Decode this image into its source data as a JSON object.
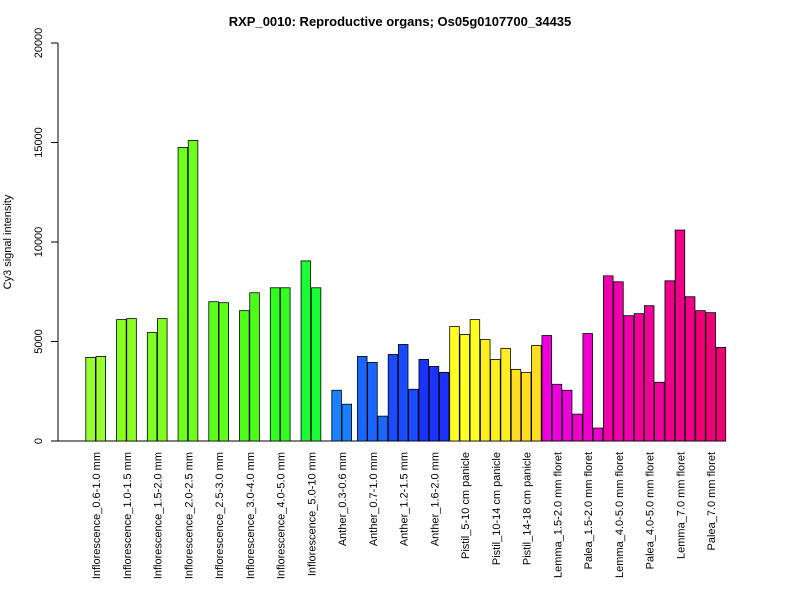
{
  "chart_data": {
    "type": "bar",
    "title": "RXP_0010: Reproductive organs; Os05g0107700_34435",
    "xlabel": "",
    "ylabel": "Cy3 signal intensity",
    "ylim": [
      0,
      20000
    ],
    "yticks": [
      0,
      5000,
      10000,
      15000,
      20000
    ],
    "grid": false,
    "legend": "none",
    "groups": [
      {
        "label": "Inflorescence_0.6-1.0 mm",
        "color": "#99ff33",
        "values": [
          4200,
          4250
        ]
      },
      {
        "label": "Inflorescence_1.0-1.5 mm",
        "color": "#8cff22",
        "values": [
          6100,
          6150
        ]
      },
      {
        "label": "Inflorescence_1.5-2.0 mm",
        "color": "#80ff22",
        "values": [
          5450,
          6150
        ]
      },
      {
        "label": "Inflorescence_2.0-2.5 mm",
        "color": "#70ff1a",
        "values": [
          14750,
          15100
        ]
      },
      {
        "label": "Inflorescence_2.5-3.0 mm",
        "color": "#5cff1a",
        "values": [
          7000,
          6950
        ]
      },
      {
        "label": "Inflorescence_3.0-4.0 mm",
        "color": "#4cff1a",
        "values": [
          6550,
          7450
        ]
      },
      {
        "label": "Inflorescence_4.0-5.0 mm",
        "color": "#33ff22",
        "values": [
          7700,
          7700
        ]
      },
      {
        "label": "Inflorescence_5.0-10 mm",
        "color": "#1aff33",
        "values": [
          9050,
          7700
        ]
      },
      {
        "label": "Anther_0.3-0.6 mm",
        "color": "#1a80ff",
        "values": [
          2550,
          1850
        ]
      },
      {
        "label": "Anther_0.7-1.0 mm",
        "color": "#1a66ff",
        "values": [
          4250,
          3950,
          1250
        ]
      },
      {
        "label": "Anther_1.2-1.5 mm",
        "color": "#1a4cff",
        "values": [
          4350,
          4850,
          2600
        ]
      },
      {
        "label": "Anther_1.6-2.0 mm",
        "color": "#1a33ff",
        "values": [
          4100,
          3750,
          3450
        ]
      },
      {
        "label": "Pistil_5-10 cm panicle",
        "color": "#ffff22",
        "values": [
          5750,
          5350,
          6100
        ]
      },
      {
        "label": "Pistil_10-14 cm panicle",
        "color": "#ffee22",
        "values": [
          5100,
          4100,
          4650
        ]
      },
      {
        "label": "Pistil_14-18 cm panicle",
        "color": "#ffdd22",
        "values": [
          3600,
          3450,
          4800
        ]
      },
      {
        "label": "Lemma_1.5-2.0 mm floret",
        "color": "#ee00dd",
        "values": [
          5300,
          2850,
          2550
        ]
      },
      {
        "label": "Palea_1.5-2.0 mm floret",
        "color": "#ee00cc",
        "values": [
          1350,
          5400,
          650
        ]
      },
      {
        "label": "Lemma_4.0-5.0 mm floret",
        "color": "#ee00aa",
        "values": [
          8300,
          8000,
          6300
        ]
      },
      {
        "label": "Palea_4.0-5.0 mm floret",
        "color": "#ee0099",
        "values": [
          6400,
          6800,
          2950
        ]
      },
      {
        "label": "Lemma_7.0 mm floret",
        "color": "#ee0088",
        "values": [
          8050,
          10600,
          7250
        ]
      },
      {
        "label": "Palea_7.0 mm floret",
        "color": "#ee0077",
        "values": [
          6550,
          6450,
          4700
        ]
      }
    ]
  }
}
